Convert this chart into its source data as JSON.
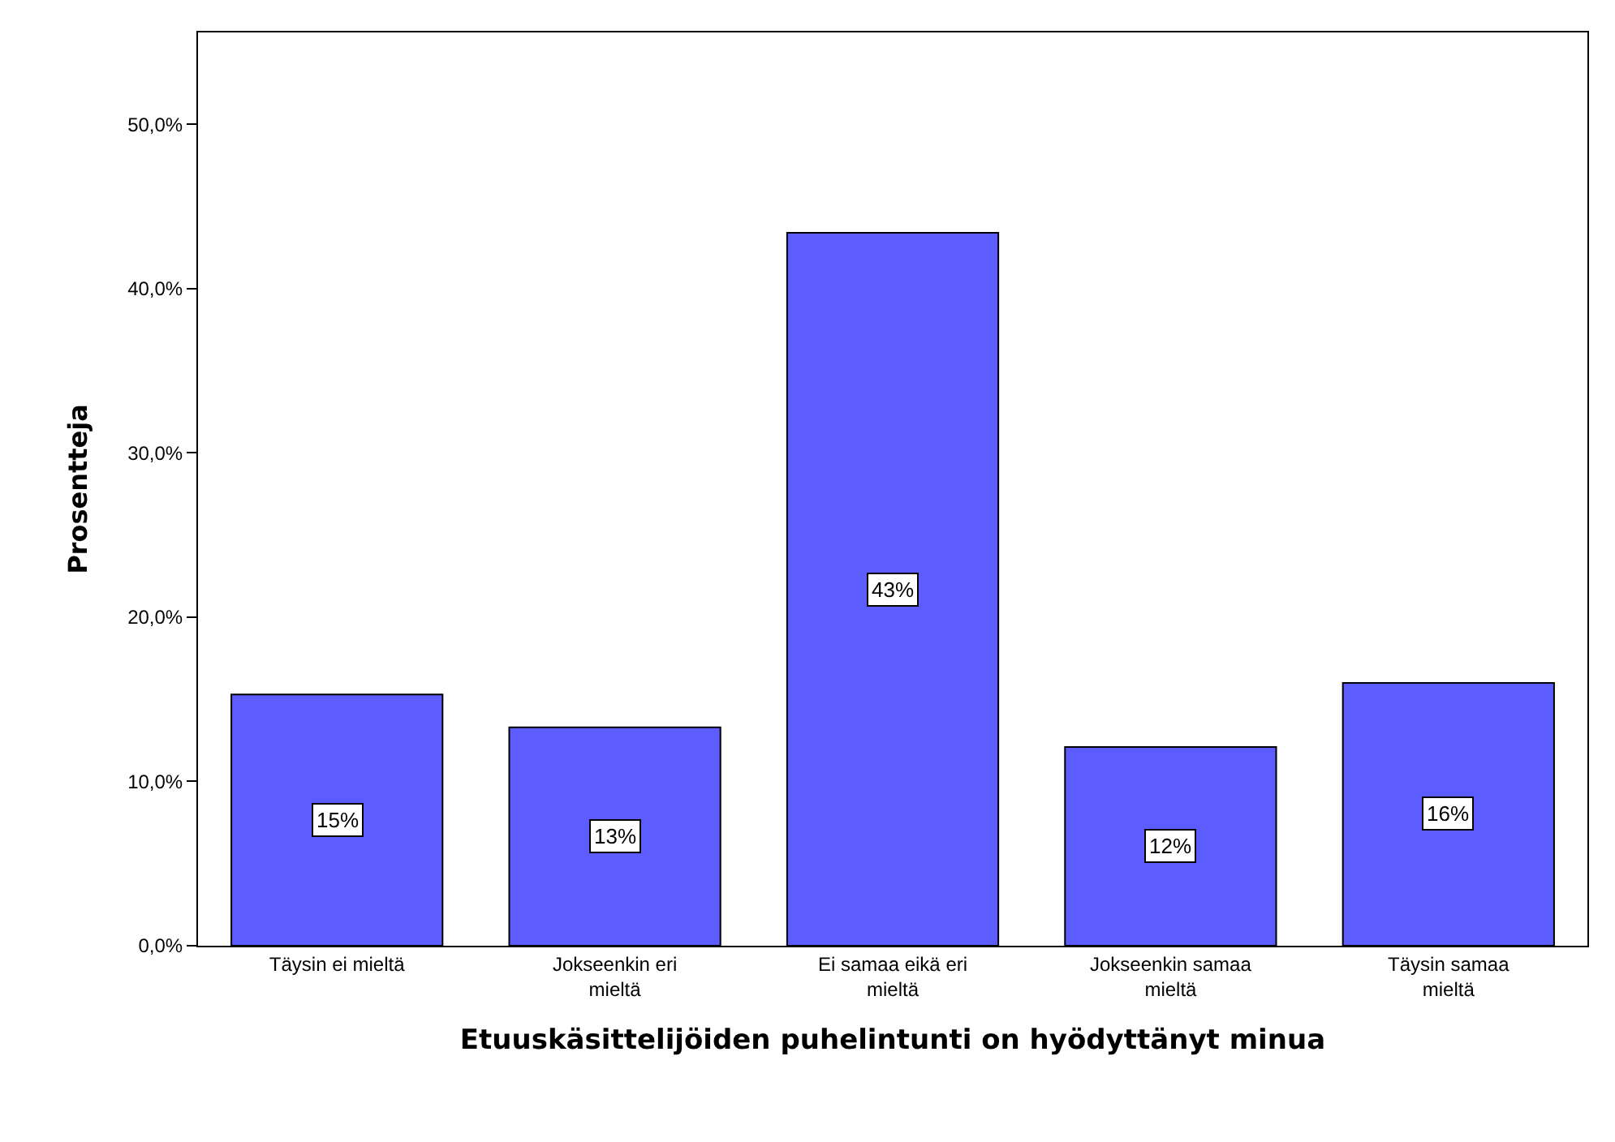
{
  "chart_data": {
    "type": "bar",
    "xlabel": "Etuuskäsittelijöiden puhelintunti on hyödyttänyt minua",
    "ylabel": "Prosentteja",
    "categories": [
      "Täysin ei mieltä",
      "Jokseenkin eri mieltä",
      "Ei samaa eikä eri mieltä",
      "Jokseenkin samaa mieltä",
      "Täysin samaa mieltä"
    ],
    "values": [
      15.3,
      13.3,
      43.4,
      12.1,
      16.0
    ],
    "value_labels": [
      "15%",
      "13%",
      "43%",
      "12%",
      "16%"
    ],
    "color": "#5c5cff",
    "ylim": [
      0,
      55.6
    ],
    "yticks": [
      {
        "value": 0,
        "label": "0,0%"
      },
      {
        "value": 10,
        "label": "10,0%"
      },
      {
        "value": 20,
        "label": "20,0%"
      },
      {
        "value": 30,
        "label": "30,0%"
      },
      {
        "value": 40,
        "label": "40,0%"
      },
      {
        "value": 50,
        "label": "50,0%"
      }
    ],
    "grid": false
  }
}
